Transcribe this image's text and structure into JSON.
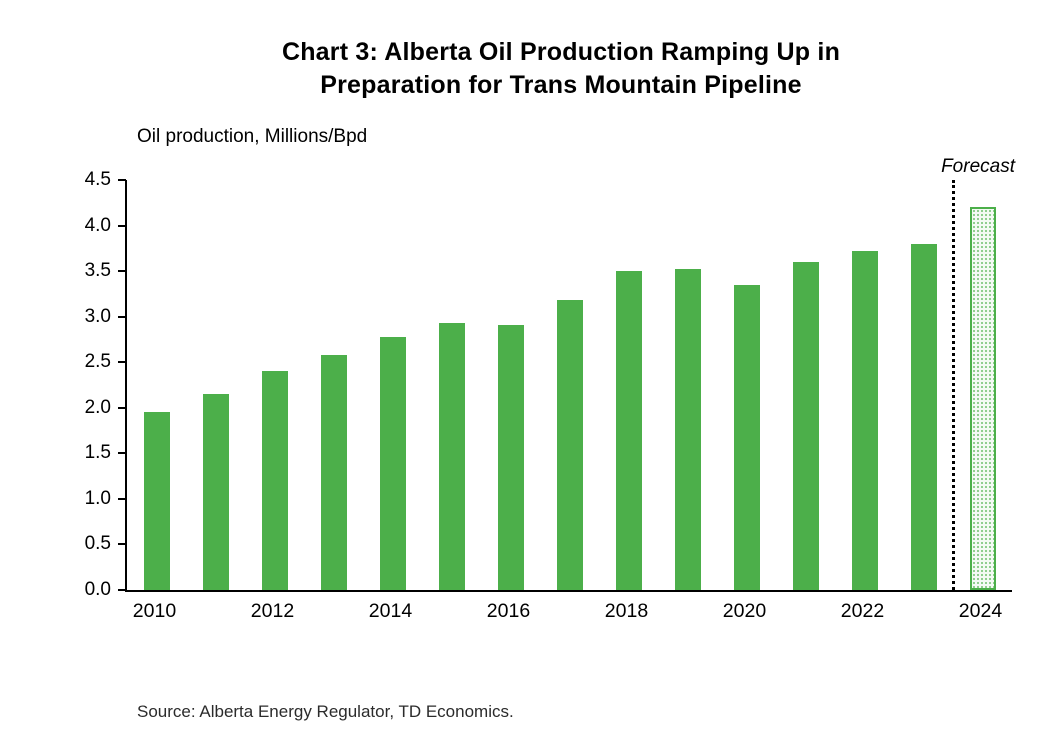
{
  "page": {
    "title_line1": "Chart 3: Alberta Oil Production Ramping Up in",
    "title_line2": "Preparation for Trans Mountain Pipeline",
    "source": "Source: Alberta Energy Regulator, TD Economics."
  },
  "chart_data": {
    "type": "bar",
    "title": "Chart 3: Alberta Oil Production Ramping Up in Preparation for Trans Mountain Pipeline",
    "ylabel": "Oil production, Millions/Bpd",
    "xlabel": "",
    "ylim": [
      0,
      4.5
    ],
    "yticks": [
      0.0,
      0.5,
      1.0,
      1.5,
      2.0,
      2.5,
      3.0,
      3.5,
      4.0,
      4.5
    ],
    "categories": [
      "2010",
      "2011",
      "2012",
      "2013",
      "2014",
      "2015",
      "2016",
      "2017",
      "2018",
      "2019",
      "2020",
      "2021",
      "2022",
      "2023",
      "2024"
    ],
    "values": [
      1.95,
      2.15,
      2.4,
      2.58,
      2.78,
      2.93,
      2.91,
      3.18,
      3.5,
      3.52,
      3.35,
      3.6,
      3.72,
      3.8,
      4.2
    ],
    "xtick_labels": [
      "2010",
      "2012",
      "2014",
      "2016",
      "2018",
      "2020",
      "2022",
      "2024"
    ],
    "forecast_categories": [
      "2024"
    ],
    "forecast_label": "Forecast",
    "bar_color": "#4CAF4A",
    "forecast_fill": "#f4faf4",
    "forecast_dot": "rgba(76,175,74,0.7)",
    "grid": false,
    "legend": "none"
  }
}
